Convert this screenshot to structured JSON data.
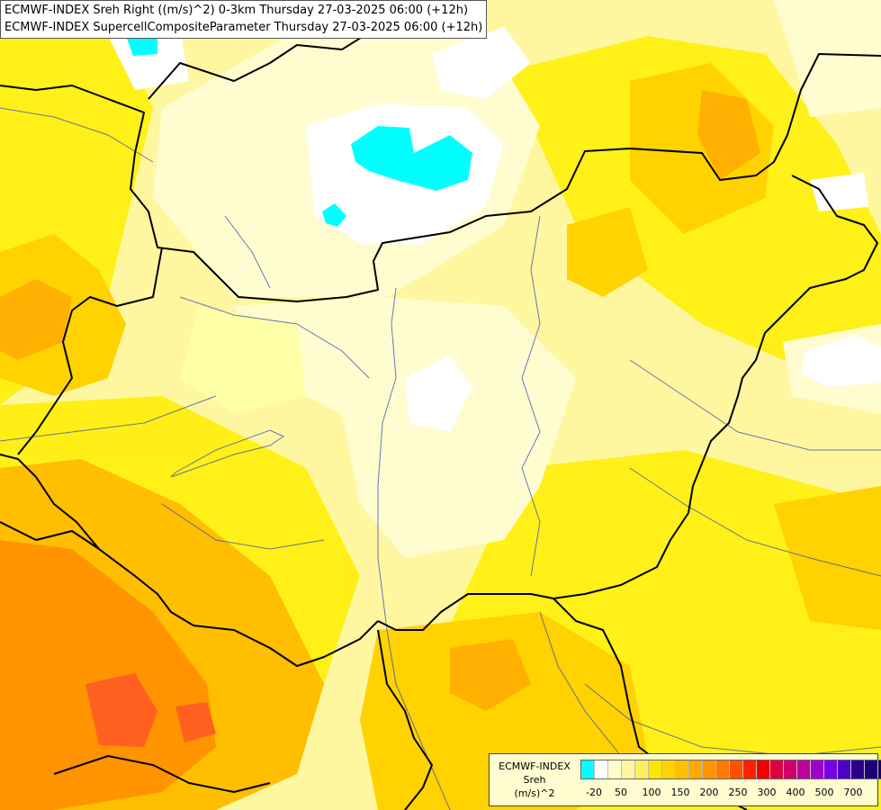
{
  "header": {
    "line1": "ECMWF-INDEX Sreh Right ((m/s)^2) 0-3km Thursday 27-03-2025 06:00 (+12h)",
    "line2": "ECMWF-INDEX SupercellCompositeParameter Thursday 27-03-2025 06:00 (+12h)"
  },
  "legend": {
    "title": "ECMWF-INDEX",
    "variable": "Sreh",
    "unit": "(m/s)^2",
    "colors": [
      "#00ffff",
      "#ffffff",
      "#fffdd0",
      "#fff7a0",
      "#ffef60",
      "#ffe600",
      "#ffd200",
      "#ffbe00",
      "#ffa800",
      "#ff9400",
      "#ff7a00",
      "#ff5000",
      "#ff2000",
      "#f00000",
      "#e0003c",
      "#d0006a",
      "#c0009a",
      "#a000c8",
      "#7800e6",
      "#5000c8",
      "#28008c",
      "#1e0078",
      "#140064"
    ],
    "ticks": [
      "-20",
      "50",
      "100",
      "150",
      "200",
      "250",
      "300",
      "400",
      "500",
      "700"
    ]
  },
  "map": {
    "colors": {
      "cyan": "#00ffff",
      "white": "#ffffff",
      "pale": "#fffdd0",
      "light_yellow": "#ffffa8",
      "yellow": "#ffff00",
      "gold": "#ffd700",
      "orange": "#ffb000",
      "dark_orange": "#ff9000",
      "red_orange": "#ff6020",
      "border": "#000000",
      "river": "#3050b0"
    }
  }
}
